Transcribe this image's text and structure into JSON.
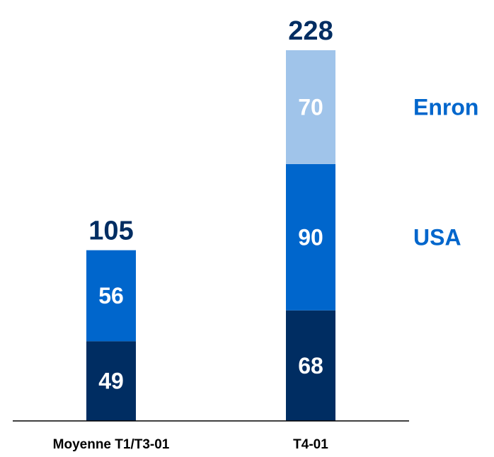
{
  "chart_data": {
    "type": "bar",
    "stacked": true,
    "categories": [
      "Moyenne T1/T3-01",
      "T4-01"
    ],
    "series": [
      {
        "values": [
          49,
          68
        ],
        "color": "#002d62"
      },
      {
        "name": "USA",
        "values": [
          56,
          90
        ],
        "color": "#0066cc"
      },
      {
        "name": "Enron",
        "values": [
          null,
          70
        ],
        "color": "#a0c4ea"
      }
    ],
    "totals": [
      105,
      228
    ],
    "total_color": "#002d62",
    "legend_color": "#0066cc",
    "legend_placement": "right",
    "ylim": [
      0,
      228
    ],
    "grid": false
  }
}
